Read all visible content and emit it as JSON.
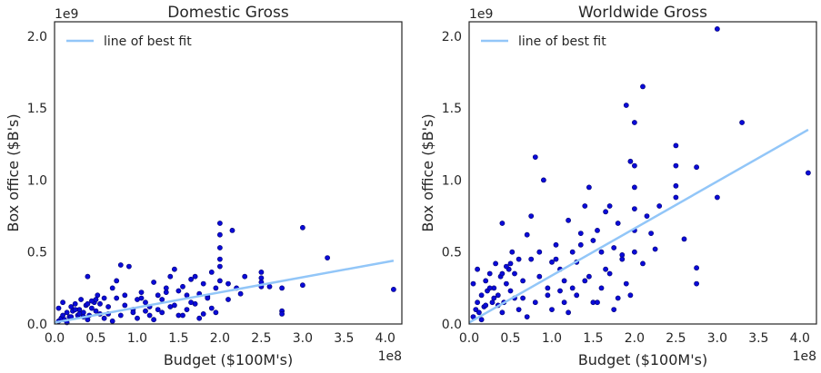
{
  "chart_data": [
    {
      "type": "scatter",
      "title": "Domestic Gross",
      "xlabel": "Budget ($100M's)",
      "ylabel": "Box office ($B's)",
      "x_offset_label": "1e8",
      "y_offset_label": "1e9",
      "xlim": [
        0,
        420000000
      ],
      "ylim": [
        0,
        2100000000
      ],
      "xticks": [
        "0.0",
        "0.5",
        "1.0",
        "1.5",
        "2.0",
        "2.5",
        "3.0",
        "3.5",
        "4.0"
      ],
      "yticks": [
        "0.0",
        "0.5",
        "1.0",
        "1.5",
        "2.0"
      ],
      "legend": {
        "label": "line of best fit",
        "placement": "top-left"
      },
      "best_fit": {
        "x": [
          0,
          410000000
        ],
        "y": [
          10000000,
          440000000
        ]
      },
      "series": [
        {
          "x": [
            5000000,
            8000000,
            10000000,
            12000000,
            15000000,
            18000000,
            20000000,
            22000000,
            25000000,
            28000000,
            30000000,
            32000000,
            35000000,
            38000000,
            40000000,
            42000000,
            45000000,
            48000000,
            50000000,
            52000000,
            55000000,
            60000000,
            65000000,
            70000000,
            75000000,
            80000000,
            85000000,
            90000000,
            95000000,
            100000000,
            105000000,
            110000000,
            115000000,
            120000000,
            125000000,
            130000000,
            135000000,
            140000000,
            145000000,
            150000000,
            155000000,
            160000000,
            165000000,
            170000000,
            175000000,
            180000000,
            185000000,
            190000000,
            195000000,
            200000000,
            200000000,
            200000000,
            200000000,
            200000000,
            200000000,
            210000000,
            215000000,
            220000000,
            225000000,
            230000000,
            250000000,
            250000000,
            250000000,
            250000000,
            260000000,
            275000000,
            275000000,
            275000000,
            300000000,
            300000000,
            330000000,
            410000000,
            35000000,
            40000000,
            60000000,
            70000000,
            80000000,
            100000000,
            110000000,
            120000000,
            130000000,
            140000000,
            150000000,
            160000000,
            170000000,
            180000000,
            190000000,
            15000000,
            25000000,
            45000000,
            55000000,
            65000000,
            75000000,
            85000000,
            95000000,
            105000000,
            115000000,
            125000000,
            135000000,
            145000000,
            155000000,
            165000000,
            175000000,
            185000000,
            195000000,
            210000000,
            5000000,
            10000000,
            20000000,
            30000000,
            40000000,
            50000000
          ],
          "y": [
            20000000,
            40000000,
            60000000,
            30000000,
            80000000,
            50000000,
            120000000,
            90000000,
            140000000,
            60000000,
            100000000,
            170000000,
            80000000,
            130000000,
            330000000,
            60000000,
            110000000,
            150000000,
            90000000,
            200000000,
            70000000,
            180000000,
            120000000,
            250000000,
            300000000,
            410000000,
            200000000,
            400000000,
            100000000,
            170000000,
            220000000,
            150000000,
            120000000,
            290000000,
            200000000,
            170000000,
            250000000,
            330000000,
            380000000,
            230000000,
            260000000,
            200000000,
            310000000,
            330000000,
            210000000,
            280000000,
            190000000,
            360000000,
            250000000,
            700000000,
            620000000,
            530000000,
            450000000,
            400000000,
            300000000,
            280000000,
            650000000,
            250000000,
            210000000,
            330000000,
            360000000,
            320000000,
            290000000,
            260000000,
            260000000,
            250000000,
            90000000,
            70000000,
            670000000,
            270000000,
            460000000,
            240000000,
            50000000,
            30000000,
            40000000,
            20000000,
            60000000,
            40000000,
            90000000,
            30000000,
            80000000,
            120000000,
            60000000,
            100000000,
            140000000,
            70000000,
            110000000,
            10000000,
            100000000,
            160000000,
            140000000,
            70000000,
            180000000,
            130000000,
            80000000,
            180000000,
            60000000,
            100000000,
            220000000,
            130000000,
            60000000,
            150000000,
            40000000,
            180000000,
            80000000,
            170000000,
            110000000,
            150000000,
            50000000,
            70000000,
            140000000,
            170000000
          ]
        }
      ]
    },
    {
      "type": "scatter",
      "title": "Worldwide Gross",
      "xlabel": "Budget ($100M's)",
      "ylabel": "Box office ($B's)",
      "x_offset_label": "1e8",
      "y_offset_label": "1e9",
      "xlim": [
        0,
        420000000
      ],
      "ylim": [
        0,
        2100000000
      ],
      "xticks": [
        "0.0",
        "0.5",
        "1.0",
        "1.5",
        "2.0",
        "2.5",
        "3.0",
        "3.5",
        "4.0"
      ],
      "yticks": [
        "0.0",
        "0.5",
        "1.0",
        "1.5",
        "2.0"
      ],
      "legend": {
        "label": "line of best fit",
        "placement": "top-left"
      },
      "best_fit": {
        "x": [
          0,
          410000000
        ],
        "y": [
          10000000,
          1350000000
        ]
      },
      "series": [
        {
          "x": [
            5000000,
            8000000,
            10000000,
            12000000,
            15000000,
            18000000,
            20000000,
            22000000,
            25000000,
            28000000,
            30000000,
            32000000,
            35000000,
            38000000,
            40000000,
            42000000,
            45000000,
            48000000,
            50000000,
            52000000,
            55000000,
            60000000,
            65000000,
            70000000,
            75000000,
            80000000,
            85000000,
            90000000,
            95000000,
            100000000,
            105000000,
            110000000,
            115000000,
            120000000,
            125000000,
            130000000,
            135000000,
            140000000,
            145000000,
            150000000,
            155000000,
            160000000,
            165000000,
            170000000,
            175000000,
            180000000,
            185000000,
            190000000,
            195000000,
            200000000,
            200000000,
            200000000,
            200000000,
            200000000,
            200000000,
            210000000,
            215000000,
            220000000,
            225000000,
            230000000,
            250000000,
            250000000,
            250000000,
            250000000,
            260000000,
            275000000,
            275000000,
            275000000,
            300000000,
            300000000,
            330000000,
            410000000,
            35000000,
            40000000,
            60000000,
            70000000,
            80000000,
            100000000,
            110000000,
            120000000,
            130000000,
            140000000,
            150000000,
            160000000,
            170000000,
            180000000,
            190000000,
            15000000,
            25000000,
            45000000,
            55000000,
            65000000,
            75000000,
            85000000,
            95000000,
            105000000,
            115000000,
            125000000,
            135000000,
            145000000,
            155000000,
            165000000,
            175000000,
            185000000,
            195000000,
            210000000,
            5000000,
            10000000,
            20000000,
            30000000,
            40000000,
            50000000
          ],
          "y": [
            50000000,
            100000000,
            150000000,
            80000000,
            200000000,
            120000000,
            300000000,
            230000000,
            350000000,
            150000000,
            250000000,
            420000000,
            200000000,
            330000000,
            700000000,
            150000000,
            280000000,
            380000000,
            230000000,
            500000000,
            180000000,
            450000000,
            300000000,
            620000000,
            750000000,
            1160000000,
            500000000,
            1000000000,
            250000000,
            430000000,
            550000000,
            380000000,
            300000000,
            720000000,
            500000000,
            430000000,
            630000000,
            820000000,
            950000000,
            580000000,
            650000000,
            500000000,
            780000000,
            820000000,
            530000000,
            700000000,
            480000000,
            1520000000,
            1130000000,
            1400000000,
            1100000000,
            950000000,
            800000000,
            650000000,
            500000000,
            1650000000,
            750000000,
            630000000,
            520000000,
            820000000,
            1240000000,
            1100000000,
            960000000,
            880000000,
            590000000,
            1090000000,
            390000000,
            280000000,
            2050000000,
            880000000,
            1400000000,
            1050000000,
            130000000,
            80000000,
            100000000,
            50000000,
            150000000,
            100000000,
            230000000,
            80000000,
            200000000,
            300000000,
            150000000,
            250000000,
            350000000,
            180000000,
            280000000,
            30000000,
            250000000,
            400000000,
            350000000,
            180000000,
            450000000,
            330000000,
            200000000,
            450000000,
            150000000,
            250000000,
            550000000,
            330000000,
            150000000,
            380000000,
            100000000,
            450000000,
            200000000,
            420000000,
            280000000,
            380000000,
            130000000,
            180000000,
            350000000,
            420000000
          ]
        }
      ]
    }
  ]
}
